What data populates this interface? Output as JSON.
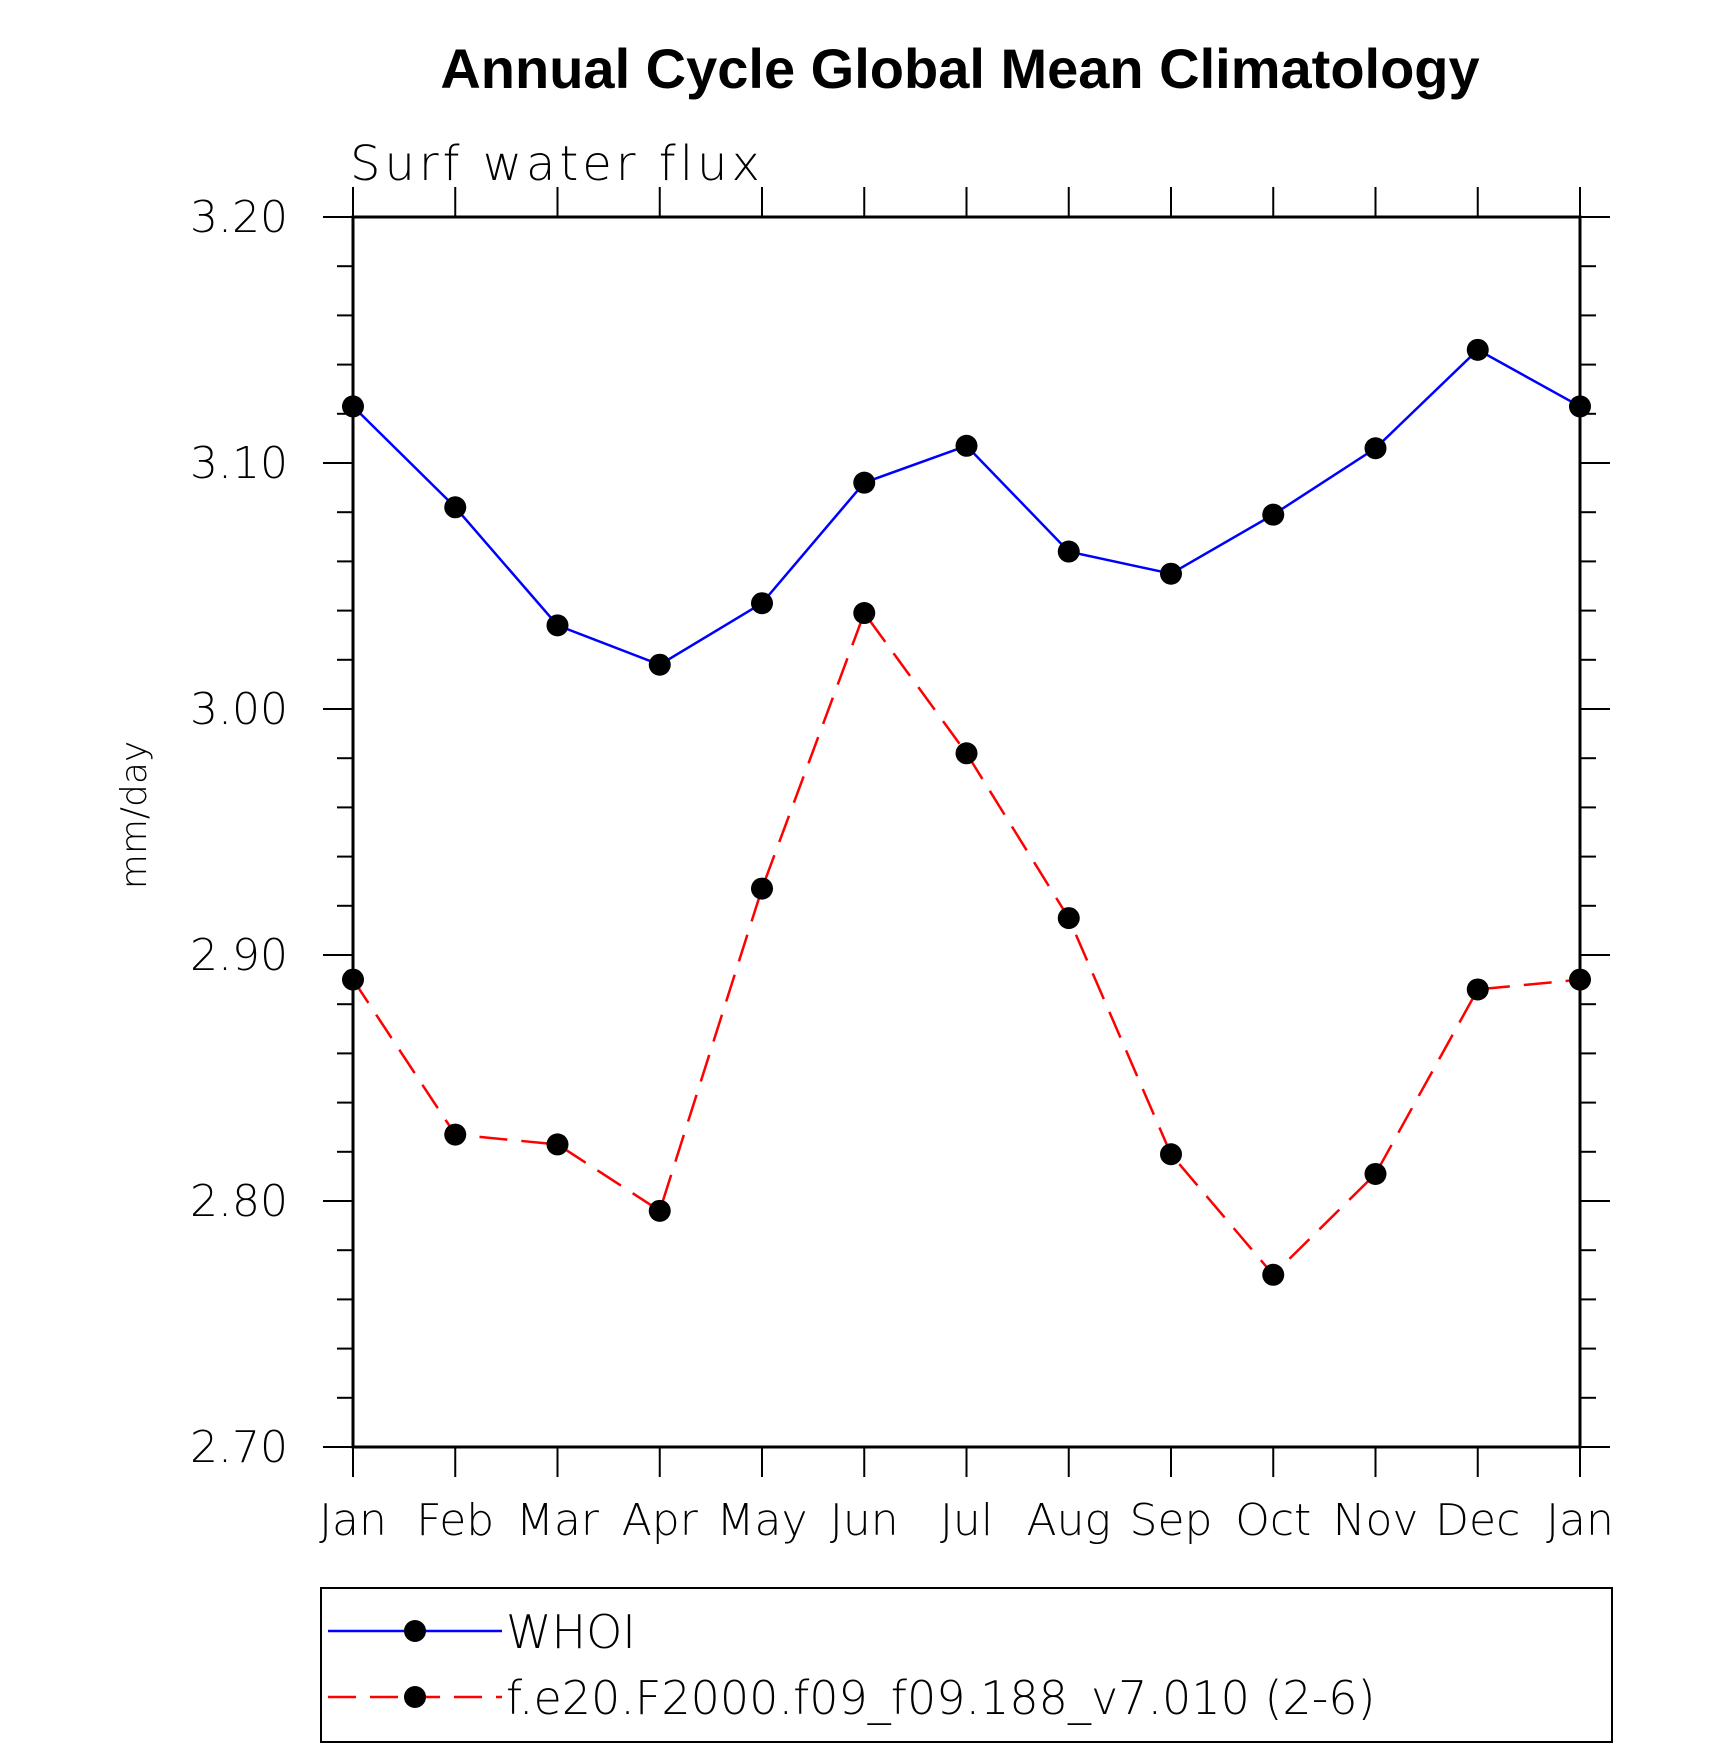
{
  "chart_data": {
    "type": "line",
    "title": "Annual Cycle Global Mean Climatology",
    "subtitle": "Surf water flux",
    "ylabel": "mm/day",
    "xlabel": "",
    "categories": [
      "Jan",
      "Feb",
      "Mar",
      "Apr",
      "May",
      "Jun",
      "Jul",
      "Aug",
      "Sep",
      "Oct",
      "Nov",
      "Dec",
      "Jan"
    ],
    "ylim": [
      2.7,
      3.2
    ],
    "yticks": [
      "2.70",
      "2.80",
      "2.90",
      "3.00",
      "3.10",
      "3.20"
    ],
    "grid": false,
    "legend_position": "bottom",
    "series": [
      {
        "name": "WHOI",
        "color": "#0000ff",
        "dash": "solid",
        "marker": "filled-circle",
        "values": [
          3.123,
          3.082,
          3.034,
          3.018,
          3.043,
          3.092,
          3.107,
          3.064,
          3.055,
          3.079,
          3.106,
          3.146,
          3.123
        ]
      },
      {
        "name": "f.e20.F2000.f09_f09.188_v7.010 (2-6)",
        "color": "#ff0000",
        "dash": "dashed",
        "marker": "filled-circle",
        "values": [
          2.89,
          2.827,
          2.823,
          2.796,
          2.927,
          3.039,
          2.982,
          2.915,
          2.819,
          2.77,
          2.811,
          2.886,
          2.89
        ]
      }
    ]
  }
}
